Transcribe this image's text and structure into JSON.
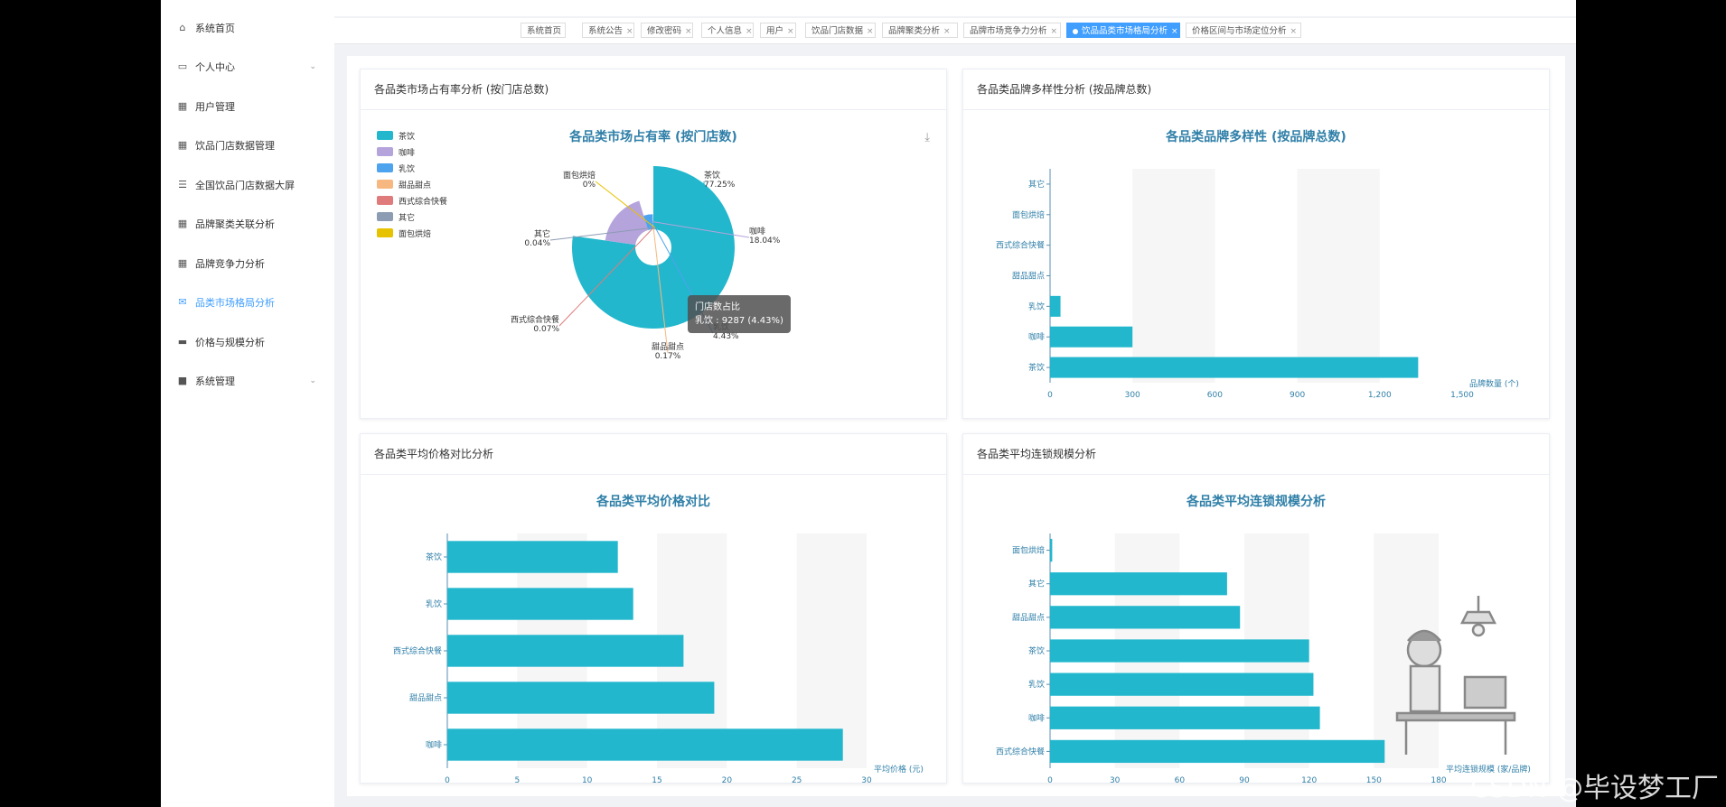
{
  "sidebar": {
    "items": [
      {
        "label": "系统首页",
        "icon": "home-icon",
        "chevron": false,
        "active": false
      },
      {
        "label": "个人中心",
        "icon": "user-card-icon",
        "chevron": true,
        "active": false
      },
      {
        "label": "用户管理",
        "icon": "grid-icon",
        "chevron": false,
        "active": false
      },
      {
        "label": "饮品门店数据管理",
        "icon": "grid-icon",
        "chevron": false,
        "active": false
      },
      {
        "label": "全国饮品门店数据大屏",
        "icon": "list-icon",
        "chevron": false,
        "active": false
      },
      {
        "label": "品牌聚类关联分析",
        "icon": "grid-icon",
        "chevron": false,
        "active": false
      },
      {
        "label": "品牌竞争力分析",
        "icon": "grid-icon",
        "chevron": false,
        "active": false
      },
      {
        "label": "品类市场格局分析",
        "icon": "chat-icon",
        "chevron": false,
        "active": true
      },
      {
        "label": "价格与规模分析",
        "icon": "monitor-icon",
        "chevron": false,
        "active": false
      },
      {
        "label": "系统管理",
        "icon": "camera-icon",
        "chevron": true,
        "active": false
      }
    ]
  },
  "tabs": [
    {
      "label": "系统首页",
      "closable": false,
      "active": false
    },
    {
      "label": "系统公告",
      "closable": true,
      "active": false
    },
    {
      "label": "修改密码",
      "closable": true,
      "active": false
    },
    {
      "label": "个人信息",
      "closable": true,
      "active": false
    },
    {
      "label": "用户",
      "closable": true,
      "active": false
    },
    {
      "label": "饮品门店数据",
      "closable": true,
      "active": false
    },
    {
      "label": "品牌聚类分析",
      "closable": true,
      "active": false
    },
    {
      "label": "品牌市场竞争力分析",
      "closable": true,
      "active": false
    },
    {
      "label": "饮品品类市场格局分析",
      "closable": true,
      "active": true
    },
    {
      "label": "价格区间与市场定位分析",
      "closable": true,
      "active": false
    }
  ],
  "tab_close": "×",
  "colors": {
    "accent": "#409eff",
    "bar": "#22b7cd",
    "title": "#2f7fa8"
  },
  "cards": {
    "pie": {
      "header": "各品类市场占有率分析 (按门店总数)",
      "download_icon": "download-icon",
      "tooltip": {
        "line1": "门店数占比",
        "line2": "乳饮 : 9287 (4.43%)"
      },
      "chart_data": {
        "type": "pie",
        "title": "各品类市场占有率 (按门店数)",
        "rose": true,
        "slices": [
          {
            "name": "茶饮",
            "percent": "77.25%",
            "value": 77.25,
            "color": "#22b7cd"
          },
          {
            "name": "咖啡",
            "percent": "18.04%",
            "value": 18.04,
            "color": "#b5a3dc"
          },
          {
            "name": "乳饮",
            "percent": "4.43%",
            "value": 4.43,
            "color": "#4ea3ee"
          },
          {
            "name": "甜品甜点",
            "percent": "0.17%",
            "value": 0.17,
            "color": "#f6b880"
          },
          {
            "name": "西式综合快餐",
            "percent": "0.07%",
            "value": 0.07,
            "color": "#e07b7b"
          },
          {
            "name": "其它",
            "percent": "0.04%",
            "value": 0.04,
            "color": "#8c9cb3"
          },
          {
            "name": "面包烘焙",
            "percent": "0%",
            "value": 0,
            "color": "#e6c200"
          }
        ],
        "legend_position": "top-left"
      }
    },
    "brand": {
      "header": "各品类品牌多样性分析 (按品牌总数)",
      "chart_data": {
        "type": "bar",
        "orientation": "horizontal",
        "title": "各品类品牌多样性 (按品牌总数)",
        "categories": [
          "其它",
          "面包烘焙",
          "西式综合快餐",
          "甜品甜点",
          "乳饮",
          "咖啡",
          "茶饮"
        ],
        "values": [
          0,
          0,
          0,
          0,
          38,
          300,
          1340
        ],
        "xlim": [
          0,
          1500
        ],
        "xticks": [
          "0",
          "300",
          "600",
          "900",
          "1,200",
          "1,500"
        ],
        "xlabel": "品牌数量 (个)"
      }
    },
    "price": {
      "header": "各品类平均价格对比分析",
      "chart_data": {
        "type": "bar",
        "orientation": "horizontal",
        "title": "各品类平均价格对比",
        "categories": [
          "茶饮",
          "乳饮",
          "西式综合快餐",
          "甜品甜点",
          "咖啡"
        ],
        "values": [
          12.2,
          13.3,
          16.9,
          19.1,
          28.3
        ],
        "xlim": [
          0,
          30
        ],
        "xticks": [
          "0",
          "5",
          "10",
          "15",
          "20",
          "25",
          "30"
        ],
        "xlabel": "平均价格 (元)"
      }
    },
    "chain": {
      "header": "各品类平均连锁规模分析",
      "chart_data": {
        "type": "bar",
        "orientation": "horizontal",
        "title": "各品类平均连锁规模分析",
        "categories": [
          "面包烘焙",
          "其它",
          "西式综合快餐",
          "甜品甜点",
          "茶饮",
          "乳饮",
          "咖啡"
        ],
        "display_order_note": "",
        "rows": [
          {
            "name": "面包烘焙",
            "value": 1
          },
          {
            "name": "其它",
            "value": 82
          },
          {
            "name": "甜品甜点",
            "value": 88
          },
          {
            "name": "茶饮",
            "value": 120
          },
          {
            "name": "乳饮",
            "value": 122
          },
          {
            "name": "咖啡",
            "value": 125
          },
          {
            "name": "西式综合快餐",
            "value": 155
          }
        ],
        "xlim": [
          0,
          180
        ],
        "xticks": [
          "0",
          "30",
          "60",
          "90",
          "120",
          "150",
          "180"
        ],
        "xlabel": "平均连锁规模 (家/品牌)"
      }
    }
  },
  "watermark": "CSDN @毕设梦工厂"
}
